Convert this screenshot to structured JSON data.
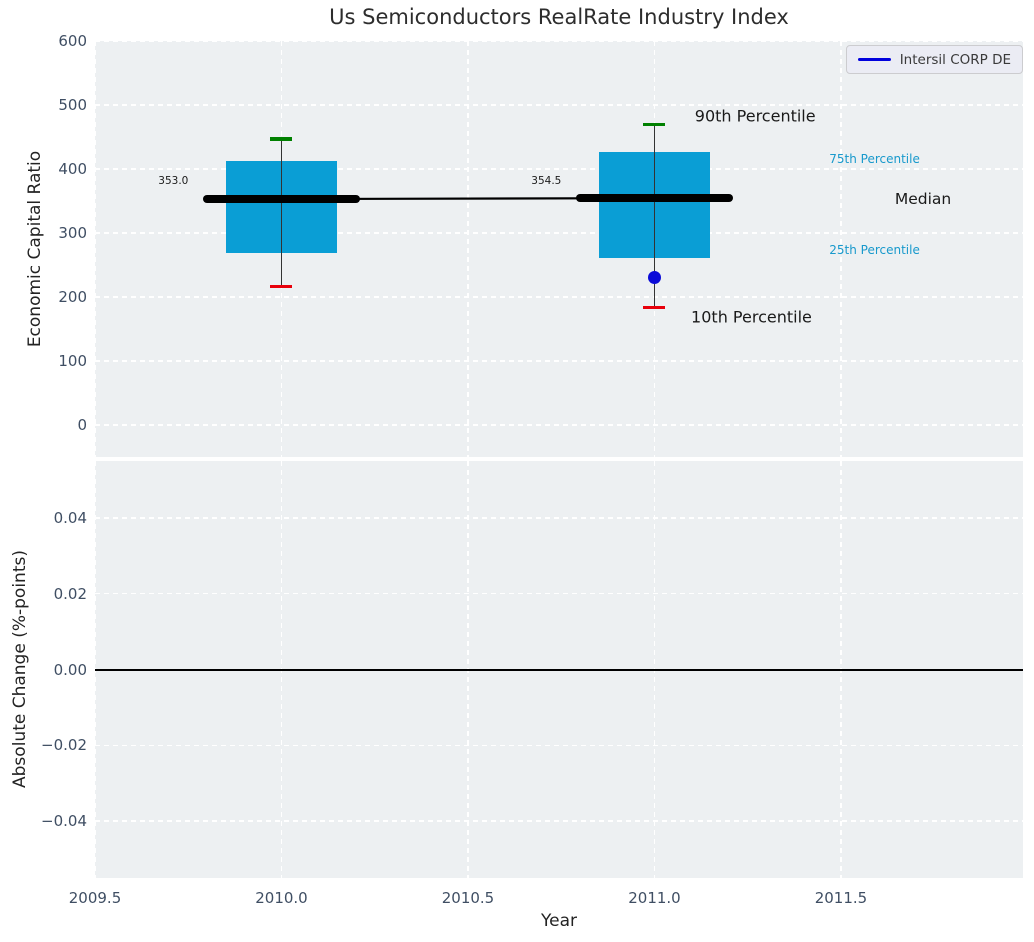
{
  "title": "Us Semiconductors RealRate Industry Index",
  "legend": {
    "label": "Intersil CORP DE",
    "line_color": "#0000dd"
  },
  "colors": {
    "plot_background": "#edf0f2",
    "grid": "#ffffff",
    "tick_label": "#3f4e63",
    "box_fill": "#0a9ed5",
    "whisker": "#333333",
    "p90_cap": "#008000",
    "p10_cap": "#e8000b",
    "median_line": "#000000",
    "company_marker": "#0b0bd8",
    "percentile_text": "#1899cc"
  },
  "chart_data": [
    {
      "type": "boxplot",
      "ylabel": "Economic Capital Ratio",
      "xlim": [
        2009.5,
        2011.988
      ],
      "ylim": [
        -50,
        600
      ],
      "grid": true,
      "legend_position": "upper right",
      "yticks": [
        {
          "v": 0,
          "label": "0"
        },
        {
          "v": 100,
          "label": "100"
        },
        {
          "v": 200,
          "label": "200"
        },
        {
          "v": 300,
          "label": "300"
        },
        {
          "v": 400,
          "label": "400"
        },
        {
          "v": 500,
          "label": "500"
        },
        {
          "v": 600,
          "label": "600"
        }
      ],
      "xticks": [
        {
          "v": 2009.5,
          "label": ""
        },
        {
          "v": 2010.0,
          "label": ""
        },
        {
          "v": 2010.5,
          "label": ""
        },
        {
          "v": 2011.0,
          "label": ""
        },
        {
          "v": 2011.5,
          "label": ""
        }
      ],
      "boxes": [
        {
          "x": 2010,
          "p10": 216,
          "p25": 269,
          "median": 353.0,
          "p75": 412,
          "p90": 447,
          "median_annotation": "353.0"
        },
        {
          "x": 2011,
          "p10": 183,
          "p25": 261,
          "median": 354.5,
          "p75": 427,
          "p90": 470,
          "median_annotation": "354.5"
        }
      ],
      "median_trend": [
        {
          "x": 2010,
          "y": 353.0
        },
        {
          "x": 2011,
          "y": 354.5
        }
      ],
      "company_series": {
        "name": "Intersil CORP DE",
        "points": [
          {
            "x": 2011,
            "y": 230
          }
        ]
      },
      "annotations": [
        {
          "text": "353.0",
          "x": 2009.71,
          "y": 381,
          "style": "value"
        },
        {
          "text": "354.5",
          "x": 2010.71,
          "y": 381,
          "style": "value"
        },
        {
          "text": "90th Percentile",
          "x": 2011.27,
          "y": 483,
          "style": "big"
        },
        {
          "text": "10th Percentile",
          "x": 2011.26,
          "y": 169,
          "style": "big"
        },
        {
          "text": "75th Percentile",
          "x": 2011.59,
          "y": 416,
          "style": "small-cyan"
        },
        {
          "text": "Median",
          "x": 2011.72,
          "y": 353,
          "style": "medium"
        },
        {
          "text": "25th Percentile",
          "x": 2011.59,
          "y": 273,
          "style": "small-cyan"
        }
      ]
    },
    {
      "type": "line",
      "ylabel": "Absolute Change (%-points)",
      "xlabel": "Year",
      "xlim": [
        2009.5,
        2011.988
      ],
      "ylim": [
        -0.055,
        0.055
      ],
      "grid": true,
      "yticks": [
        {
          "v": 0.04,
          "label": "0.04"
        },
        {
          "v": 0.02,
          "label": "0.02"
        },
        {
          "v": 0.0,
          "label": "0.00"
        },
        {
          "v": -0.02,
          "label": "−0.02"
        },
        {
          "v": -0.04,
          "label": "−0.04"
        }
      ],
      "xticks": [
        {
          "v": 2009.5,
          "label": "2009.5"
        },
        {
          "v": 2010.0,
          "label": "2010.0"
        },
        {
          "v": 2010.5,
          "label": "2010.5"
        },
        {
          "v": 2011.0,
          "label": "2011.0"
        },
        {
          "v": 2011.5,
          "label": "2011.5"
        }
      ],
      "zero_line": 0.0,
      "series": []
    }
  ]
}
